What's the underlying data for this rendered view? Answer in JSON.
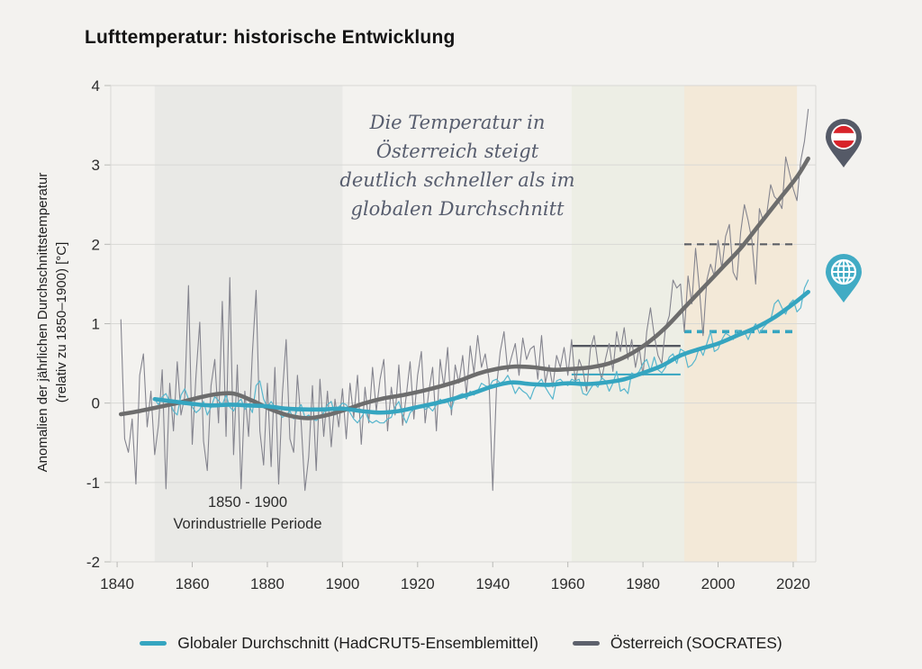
{
  "title": "Lufttemperatur: historische Entwicklung",
  "y_axis": {
    "label_line1": "Anomalien der jährlichen Durchschnittstemperatur",
    "label_line2": "(relativ zu 1850–1900) [°C]"
  },
  "annotation": {
    "lines": [
      "Die Temperatur in",
      "Österreich steigt",
      "deutlich schneller als im",
      "globalen Durchschnitt"
    ]
  },
  "period_label": {
    "line1": "1850 - 1900",
    "line2": "Vorindustrielle Periode"
  },
  "legend": [
    {
      "label": "Globaler Durchschnitt (HadCRUT5-Ensemblemittel)",
      "color": "#35a5c0"
    },
    {
      "label": "Österreich (SOCRATES)",
      "color": "#5d616c"
    }
  ],
  "icons": {
    "austria_pin": "austria-flag-pin",
    "globe_pin": "globe-pin"
  },
  "colors": {
    "background": "#f3f2ef",
    "grid": "#d8d8d5",
    "band_preindustrial": "#e9e9e6",
    "band_1961_1990": "#edeee5",
    "band_1991_2020": "#f3e9d8",
    "austria_smooth": "#6d6d6d",
    "austria_annual": "#84848e",
    "global_smooth": "#35a5c0",
    "global_annual": "#58b6cd",
    "ref_gray": "#53565f",
    "ref_blue": "#35a5c0",
    "pin_austria_body": "#555a67",
    "pin_flag_red": "#d8232a",
    "pin_globe_body": "#41abc4"
  },
  "chart_data": {
    "type": "line",
    "title": "Lufttemperatur: historische Entwicklung",
    "xlabel": "",
    "ylabel": "Anomalien der jährlichen Durchschnittstemperatur (relativ zu 1850–1900) [°C]",
    "xlim": [
      1838.3,
      2026
    ],
    "ylim": [
      -2,
      4
    ],
    "x_ticks": [
      1840,
      1860,
      1880,
      1900,
      1920,
      1940,
      1960,
      1980,
      2000,
      2020
    ],
    "y_ticks": [
      4,
      3,
      2,
      1,
      0,
      -1,
      -2
    ],
    "grid": "horizontal-only",
    "legend_position": "bottom-center",
    "bands": [
      {
        "name": "preindustrial",
        "label": "1850 - 1900 Vorindustrielle Periode",
        "x0": 1850,
        "x1": 1900,
        "color": "#e9e9e6"
      },
      {
        "name": "period-1961-1990",
        "x0": 1961,
        "x1": 1991,
        "color": "#edeee5"
      },
      {
        "name": "period-1991-2020",
        "x0": 1991,
        "x1": 2021,
        "color": "#f3e9d8"
      }
    ],
    "reference_lines": [
      {
        "series": "austria",
        "period": [
          1961,
          1990
        ],
        "value": 0.72,
        "style": "solid",
        "color": "#53565f",
        "width": 2.4
      },
      {
        "series": "global",
        "period": [
          1961,
          1990
        ],
        "value": 0.36,
        "style": "solid",
        "color": "#35a5c0",
        "width": 2
      },
      {
        "series": "austria",
        "period": [
          1991,
          2021
        ],
        "value": 2.0,
        "style": "dashed",
        "color": "#5c5f66",
        "width": 2.2
      },
      {
        "series": "global",
        "period": [
          1991,
          2021
        ],
        "value": 0.9,
        "style": "dashed",
        "color": "#35a5c0",
        "width": 3.6
      }
    ],
    "series": [
      {
        "name": "Österreich jährlich (SOCRATES)",
        "role": "austria-annual",
        "color": "#84848e",
        "width": 1.1,
        "smooth": false,
        "start": 1841,
        "step": 1,
        "values": [
          1.05,
          -0.45,
          -0.62,
          -0.2,
          -1.02,
          0.35,
          0.62,
          -0.3,
          0.15,
          -0.65,
          -0.28,
          0.42,
          -1.08,
          0.25,
          -0.35,
          0.52,
          -0.15,
          0.08,
          1.48,
          -0.52,
          0.35,
          1.02,
          -0.48,
          -0.85,
          0.22,
          0.55,
          -0.25,
          1.28,
          -0.42,
          1.58,
          -0.65,
          0.48,
          -1.08,
          0.15,
          -0.42,
          0.62,
          1.42,
          -0.35,
          -0.78,
          0.25,
          -0.8,
          0.45,
          -1.02,
          0.12,
          0.8,
          -0.45,
          -0.62,
          0.35,
          -0.25,
          -1.1,
          -0.68,
          0.22,
          -0.85,
          0.3,
          -0.42,
          0.15,
          -0.55,
          0.05,
          -0.3,
          0.18,
          -0.45,
          0.25,
          -0.18,
          0.35,
          -0.52,
          0.2,
          -0.25,
          0.45,
          -0.1,
          0.3,
          0.55,
          -0.35,
          0.2,
          -0.15,
          0.48,
          -0.28,
          0.1,
          0.52,
          -0.2,
          0.35,
          0.65,
          -0.25,
          0.15,
          0.45,
          -0.35,
          0.55,
          0.2,
          0.7,
          -0.15,
          0.48,
          0.25,
          0.6,
          0.1,
          0.72,
          0.38,
          0.85,
          0.45,
          0.62,
          0.3,
          -1.1,
          0.2,
          0.65,
          0.9,
          0.4,
          0.58,
          0.75,
          0.35,
          0.82,
          0.55,
          0.68,
          0.72,
          0.3,
          0.85,
          0.25,
          0.48,
          0.2,
          0.6,
          0.45,
          0.7,
          0.35,
          0.8,
          0.25,
          0.55,
          0.42,
          0.15,
          0.68,
          0.85,
          0.5,
          0.3,
          0.55,
          0.75,
          0.4,
          0.9,
          0.65,
          0.95,
          0.55,
          0.8,
          0.45,
          0.7,
          0.35,
          0.9,
          1.2,
          0.85,
          0.6,
          0.5,
          0.95,
          1.1,
          1.55,
          1.45,
          1.5,
          0.9,
          1.6,
          1.25,
          1.95,
          1.45,
          0.85,
          1.55,
          1.75,
          1.6,
          2.05,
          1.7,
          2.1,
          2.25,
          1.65,
          1.55,
          2.15,
          2.5,
          2.3,
          2.05,
          1.5,
          2.45,
          2.3,
          2.4,
          2.75,
          2.6,
          2.55,
          2.45,
          3.1,
          2.9,
          2.7,
          2.55,
          3.05,
          3.3,
          3.7
        ]
      },
      {
        "name": "Global jährlich (HadCRUT5)",
        "role": "global-annual",
        "color": "#58b6cd",
        "width": 1.2,
        "smooth": false,
        "start": 1850,
        "step": 1,
        "values": [
          0.05,
          -0.02,
          0.08,
          0.12,
          0.02,
          -0.1,
          -0.15,
          0.1,
          0.18,
          0.05,
          -0.05,
          -0.12,
          -0.08,
          0.02,
          -0.15,
          -0.05,
          0.08,
          0.03,
          -0.02,
          0.1,
          -0.05,
          -0.1,
          0,
          0.05,
          -0.08,
          -0.02,
          -0.12,
          0.22,
          0.28,
          0.05,
          -0.05,
          0.02,
          -0.05,
          -0.12,
          -0.18,
          -0.15,
          -0.1,
          -0.2,
          -0.08,
          -0.02,
          -0.18,
          -0.15,
          -0.2,
          -0.22,
          -0.18,
          -0.12,
          -0.02,
          0.02,
          -0.15,
          -0.05,
          0,
          -0.02,
          -0.12,
          -0.2,
          -0.25,
          -0.18,
          -0.1,
          -0.22,
          -0.25,
          -0.22,
          -0.25,
          -0.25,
          -0.2,
          -0.18,
          -0.05,
          0.02,
          -0.15,
          -0.25,
          -0.12,
          -0.08,
          -0.05,
          -0.02,
          -0.08,
          -0.05,
          -0.1,
          -0.02,
          0.05,
          0,
          0.02,
          -0.08,
          0.08,
          0.1,
          0.12,
          0.05,
          0.15,
          0.1,
          0.15,
          0.25,
          0.22,
          0.2,
          0.28,
          0.3,
          0.25,
          0.28,
          0.35,
          0.25,
          0.12,
          0.2,
          0.15,
          0.12,
          0.05,
          0.18,
          0.25,
          0.3,
          0.2,
          0.12,
          0.05,
          0.28,
          0.3,
          0.25,
          0.22,
          0.3,
          0.28,
          0.3,
          0.12,
          0.1,
          0.18,
          0.25,
          0.2,
          0.32,
          0.28,
          0.15,
          0.25,
          0.4,
          0.15,
          0.18,
          0.12,
          0.38,
          0.35,
          0.4,
          0.5,
          0.55,
          0.4,
          0.58,
          0.42,
          0.38,
          0.45,
          0.58,
          0.62,
          0.5,
          0.68,
          0.65,
          0.45,
          0.48,
          0.55,
          0.7,
          0.6,
          0.75,
          0.9,
          0.65,
          0.68,
          0.8,
          0.88,
          0.85,
          0.8,
          0.92,
          0.88,
          0.9,
          0.8,
          0.92,
          1,
          0.88,
          0.95,
          1,
          1.05,
          1.25,
          1.3,
          1.2,
          1.12,
          1.25,
          1.3,
          1.15,
          1.2,
          1.45,
          1.55
        ]
      },
      {
        "name": "Österreich geglättet (SOCRATES)",
        "role": "austria-smooth",
        "color": "#6d6d6d",
        "width": 4.6,
        "smooth": true,
        "points": [
          [
            1841,
            -0.14
          ],
          [
            1846,
            -0.1
          ],
          [
            1851,
            -0.05
          ],
          [
            1856,
            0
          ],
          [
            1861,
            0.06
          ],
          [
            1866,
            0.11
          ],
          [
            1871,
            0.12
          ],
          [
            1876,
            0.03
          ],
          [
            1881,
            -0.08
          ],
          [
            1886,
            -0.16
          ],
          [
            1891,
            -0.19
          ],
          [
            1896,
            -0.15
          ],
          [
            1901,
            -0.08
          ],
          [
            1906,
            0
          ],
          [
            1911,
            0.06
          ],
          [
            1916,
            0.1
          ],
          [
            1921,
            0.15
          ],
          [
            1926,
            0.21
          ],
          [
            1931,
            0.28
          ],
          [
            1936,
            0.37
          ],
          [
            1941,
            0.43
          ],
          [
            1946,
            0.46
          ],
          [
            1951,
            0.45
          ],
          [
            1956,
            0.42
          ],
          [
            1961,
            0.43
          ],
          [
            1966,
            0.45
          ],
          [
            1971,
            0.5
          ],
          [
            1976,
            0.6
          ],
          [
            1981,
            0.75
          ],
          [
            1986,
            0.95
          ],
          [
            1991,
            1.2
          ],
          [
            1996,
            1.45
          ],
          [
            2001,
            1.7
          ],
          [
            2006,
            1.95
          ],
          [
            2011,
            2.25
          ],
          [
            2016,
            2.55
          ],
          [
            2021,
            2.85
          ],
          [
            2024,
            3.08
          ]
        ]
      },
      {
        "name": "Global geglättet (HadCRUT5)",
        "role": "global-smooth",
        "color": "#35a5c0",
        "width": 4.6,
        "smooth": true,
        "points": [
          [
            1850,
            0.05
          ],
          [
            1855,
            0.02
          ],
          [
            1860,
            -0.01
          ],
          [
            1865,
            -0.03
          ],
          [
            1870,
            -0.02
          ],
          [
            1875,
            -0.03
          ],
          [
            1880,
            -0.04
          ],
          [
            1885,
            -0.07
          ],
          [
            1890,
            -0.08
          ],
          [
            1895,
            -0.08
          ],
          [
            1900,
            -0.07
          ],
          [
            1905,
            -0.1
          ],
          [
            1910,
            -0.12
          ],
          [
            1915,
            -0.1
          ],
          [
            1920,
            -0.05
          ],
          [
            1925,
            0
          ],
          [
            1930,
            0.06
          ],
          [
            1935,
            0.13
          ],
          [
            1940,
            0.21
          ],
          [
            1945,
            0.26
          ],
          [
            1950,
            0.24
          ],
          [
            1955,
            0.23
          ],
          [
            1960,
            0.25
          ],
          [
            1965,
            0.24
          ],
          [
            1970,
            0.26
          ],
          [
            1975,
            0.3
          ],
          [
            1980,
            0.38
          ],
          [
            1985,
            0.47
          ],
          [
            1990,
            0.6
          ],
          [
            1995,
            0.68
          ],
          [
            2000,
            0.75
          ],
          [
            2005,
            0.85
          ],
          [
            2010,
            0.95
          ],
          [
            2015,
            1.08
          ],
          [
            2020,
            1.25
          ],
          [
            2024,
            1.4
          ]
        ]
      }
    ]
  }
}
